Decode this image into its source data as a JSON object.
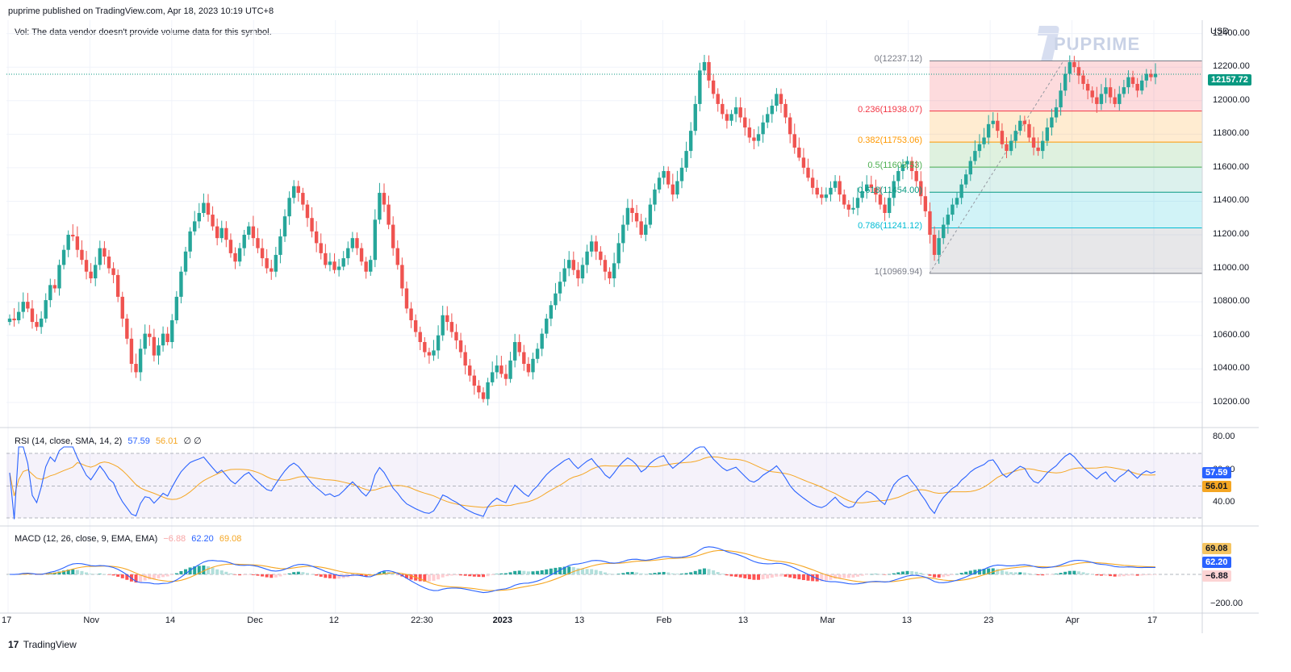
{
  "header": {
    "published": "puprime published on TradingView.com, Apr 18, 2023 10:19 UTC+8",
    "vol_note": "Vol: The data vendor doesn't provide volume data for this symbol.",
    "brand": "PUPRIME",
    "currency": "USD",
    "footer": "TradingView"
  },
  "colors": {
    "up": "#26a69a",
    "down": "#ef5350",
    "rsi": "#2962ff",
    "rsi_ma": "#f5a623",
    "macd": "#2962ff",
    "signal": "#f5a623",
    "price_tag": "#089981"
  },
  "fib": [
    {
      "label": "0(12237.12)",
      "value": 12237.12,
      "color": "#787b86",
      "fill": "rgba(242,54,69,0.18)"
    },
    {
      "label": "0.236(11938.07)",
      "value": 11938.07,
      "color": "#f23645",
      "fill": "rgba(255,152,0,0.18)"
    },
    {
      "label": "0.382(11753.06)",
      "value": 11753.06,
      "color": "#ff9800",
      "fill": "rgba(76,175,80,0.18)"
    },
    {
      "label": "0.5(11603.53)",
      "value": 11603.53,
      "color": "#4caf50",
      "fill": "rgba(8,153,129,0.14)"
    },
    {
      "label": "0.618(11454.00)",
      "value": 11454.0,
      "color": "#089981",
      "fill": "rgba(0,188,212,0.18)"
    },
    {
      "label": "0.786(11241.12)",
      "value": 11241.12,
      "color": "#00bcd4",
      "fill": "rgba(120,123,134,0.18)"
    },
    {
      "label": "1(10969.94)",
      "value": 10969.94,
      "color": "#787b86",
      "fill": null
    }
  ],
  "price": {
    "last_label": "12157.72",
    "last": 12157.72
  },
  "rsi_legend": {
    "name": "RSI (14, close, SMA, 14, 2)",
    "v1": "57.59",
    "v2": "56.01",
    "rest": "∅ ∅",
    "tag_rsi": "57.59",
    "tag_ma": "56.01",
    "scale_hi": "80.00",
    "scale_mid": "60.00",
    "scale_lo": "40.00"
  },
  "macd_legend": {
    "name": "MACD (12, 26, close, 9, EMA, EMA)",
    "v1": "−6.88",
    "v2": "62.20",
    "v3": "69.08",
    "tag_signal": "69.08",
    "tag_macd": "62.20",
    "tag_hist": "−6.88",
    "scale_lo": "−200.00"
  },
  "chart_data": {
    "type": "candlestick",
    "title": "",
    "yaxis_unit": "USD",
    "y_ticks": [
      "12400.00",
      "12200.00",
      "12000.00",
      "11800.00",
      "11600.00",
      "11400.00",
      "11200.00",
      "11000.00",
      "10800.00",
      "10600.00",
      "10400.00",
      "10200.00"
    ],
    "x_ticks": [
      "17",
      "Nov",
      "14",
      "Dec",
      "12",
      "22:30",
      "2023",
      "13",
      "Feb",
      "13",
      "Mar",
      "13",
      "23",
      "Apr",
      "17"
    ],
    "ylim": [
      10050,
      12480
    ],
    "closes": [
      10700,
      10690,
      10740,
      10800,
      10760,
      10680,
      10650,
      10700,
      10810,
      10900,
      10880,
      11020,
      11110,
      11200,
      11190,
      11110,
      11050,
      10980,
      10940,
      11020,
      11120,
      11070,
      11000,
      10960,
      10830,
      10700,
      10580,
      10430,
      10380,
      10520,
      10610,
      10590,
      10480,
      10540,
      10610,
      10560,
      10690,
      10830,
      10980,
      11100,
      11220,
      11280,
      11330,
      11390,
      11320,
      11250,
      11180,
      11240,
      11170,
      11090,
      11040,
      11120,
      11200,
      11250,
      11180,
      11120,
      11060,
      11000,
      10980,
      11080,
      11190,
      11310,
      11420,
      11490,
      11450,
      11380,
      11300,
      11220,
      11150,
      11090,
      11020,
      11040,
      10990,
      11010,
      11060,
      11120,
      11180,
      11120,
      11040,
      10980,
      11050,
      11290,
      11450,
      11380,
      11260,
      11120,
      11020,
      10880,
      10760,
      10690,
      10620,
      10560,
      10500,
      10480,
      10510,
      10600,
      10720,
      10680,
      10620,
      10570,
      10500,
      10420,
      10360,
      10300,
      10260,
      10220,
      10320,
      10380,
      10420,
      10370,
      10340,
      10450,
      10560,
      10500,
      10430,
      10380,
      10460,
      10520,
      10610,
      10700,
      10780,
      10850,
      10920,
      11000,
      11050,
      10990,
      10940,
      11020,
      11100,
      11160,
      11100,
      11050,
      10980,
      10940,
      11030,
      11150,
      11260,
      11360,
      11330,
      11280,
      11200,
      11260,
      11380,
      11470,
      11540,
      11580,
      11500,
      11440,
      11520,
      11600,
      11700,
      11820,
      11980,
      12180,
      12230,
      12120,
      12040,
      11980,
      11920,
      11880,
      11920,
      11960,
      11900,
      11840,
      11780,
      11760,
      11800,
      11870,
      11920,
      11970,
      12040,
      11980,
      11900,
      11800,
      11720,
      11660,
      11600,
      11540,
      11480,
      11440,
      11420,
      11440,
      11480,
      11520,
      11440,
      11380,
      11350,
      11360,
      11420,
      11460,
      11500,
      11480,
      11440,
      11380,
      11330,
      11420,
      11520,
      11580,
      11620,
      11640,
      11580,
      11520,
      11430,
      11340,
      11200,
      11080,
      11180,
      11260,
      11320,
      11380,
      11420,
      11500,
      11560,
      11640,
      11700,
      11740,
      11780,
      11860,
      11880,
      11820,
      11740,
      11700,
      11760,
      11820,
      11880,
      11860,
      11780,
      11720,
      11700,
      11760,
      11840,
      11900,
      11960,
      12060,
      12160,
      12230,
      12200,
      12150,
      12100,
      12060,
      12020,
      11980,
      12040,
      12080,
      12020,
      11980,
      12040,
      12080,
      12140,
      12100,
      12060,
      12120,
      12160,
      12140,
      12160
    ]
  }
}
